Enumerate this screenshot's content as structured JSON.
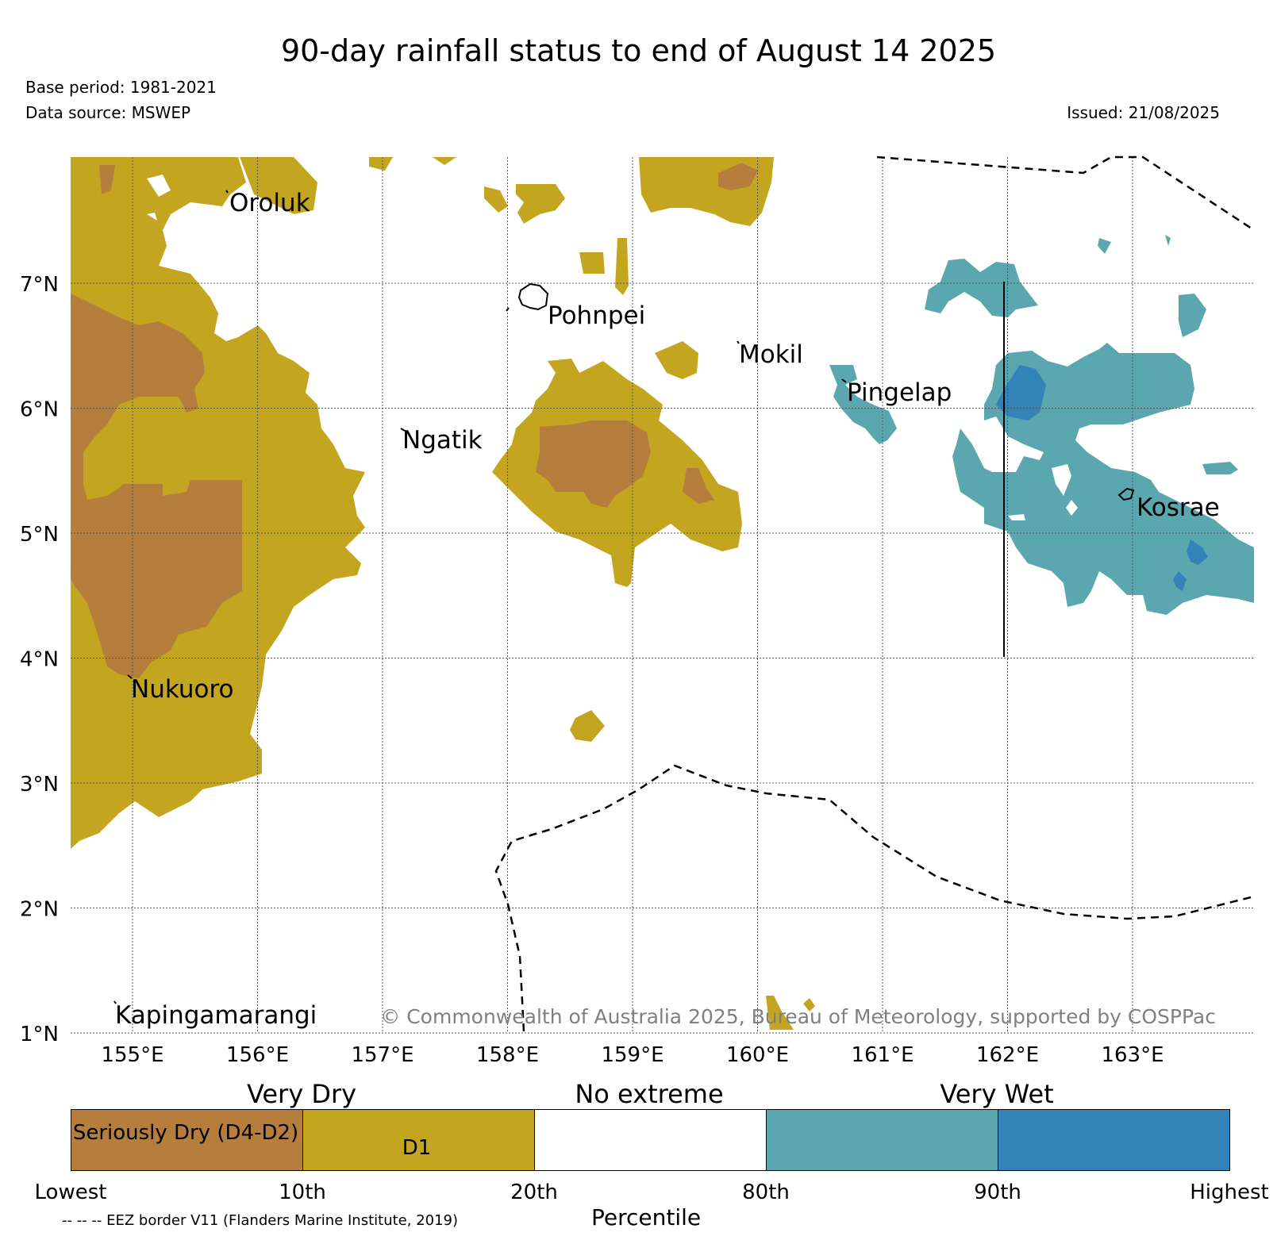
{
  "title": "90-day rainfall status to end of August 14 2025",
  "base_period": "Base period: 1981-2021",
  "data_source": "Data source: MSWEP",
  "issued": "Issued: 21/08/2025",
  "copyright": "© Commonwealth of Australia 2025, Bureau of Meteorology, supported by COSPPac",
  "map": {
    "lat_labels": [
      "7°N",
      "6°N",
      "5°N",
      "4°N",
      "3°N",
      "2°N",
      "1°N"
    ],
    "lon_labels": [
      "155°E",
      "156°E",
      "157°E",
      "158°E",
      "159°E",
      "160°E",
      "161°E",
      "162°E",
      "163°E"
    ],
    "places": [
      "Oroluk",
      "Pohnpei",
      "Mokil",
      "Pingelap",
      "Ngatik",
      "Nukuoro",
      "Kosrae",
      "Kapingamarangi"
    ],
    "grid": true,
    "eez_border_style": "dashed"
  },
  "legend": {
    "categories": [
      "Very Dry",
      "No extreme",
      "Very Wet"
    ],
    "class_labels": [
      "Seriously Dry (D4-D2)",
      "D1"
    ],
    "percentile_ticks": [
      "Lowest",
      "10th",
      "20th",
      "80th",
      "90th",
      "Highest"
    ],
    "axis_label": "Percentile",
    "eez_note": "-- -- -- EEZ border V11 (Flanders Marine Institute, 2019)"
  },
  "colors": {
    "seriously_dry": "#B67E3C",
    "d1": "#C4A51F",
    "no_extreme": "#FFFFFF",
    "wet_80_90": "#5BA7AF",
    "very_wet_90": "#3483B8"
  }
}
